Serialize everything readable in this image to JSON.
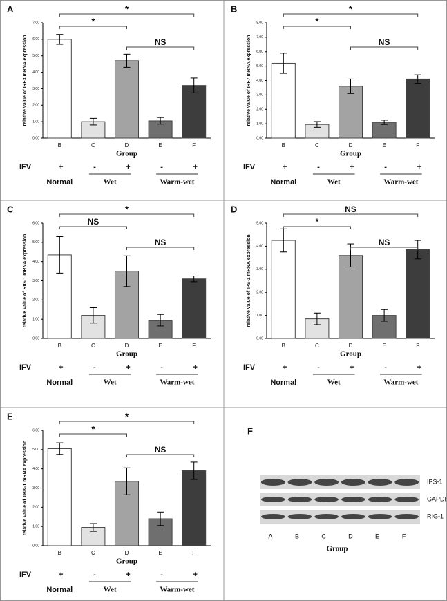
{
  "chart_data": [
    {
      "type": "bar",
      "panel": "A",
      "y_label": "relative value of IRF3 mRNA expression",
      "x_label": "Group",
      "categories": [
        "B",
        "C",
        "D",
        "E",
        "F"
      ],
      "values": [
        6.0,
        1.0,
        4.7,
        1.05,
        3.2
      ],
      "errors": [
        0.3,
        0.2,
        0.4,
        0.2,
        0.45
      ],
      "colors": [
        "#ffffff",
        "#e2e2e2",
        "#a3a3a3",
        "#6f6f6f",
        "#3d3d3d"
      ],
      "ylim": [
        0,
        7
      ],
      "yticks": [
        {
          "value": 0,
          "label": "0.00"
        },
        {
          "value": 1,
          "label": "1.00"
        },
        {
          "value": 2,
          "label": "2.00"
        },
        {
          "value": 3,
          "label": "3.00"
        },
        {
          "value": 4,
          "label": "4.00"
        },
        {
          "value": 5,
          "label": "5.00"
        },
        {
          "value": 6,
          "label": "6.00"
        },
        {
          "value": 7,
          "label": "7.00"
        }
      ],
      "comparisons": [
        {
          "label": "*",
          "span": [
            0,
            4
          ]
        },
        {
          "label": "*",
          "span": [
            0,
            2
          ]
        },
        {
          "label": "NS",
          "span": [
            2,
            4
          ]
        }
      ],
      "treatment": {
        "label": "IFV",
        "signs": [
          "+",
          "-",
          "+",
          "-",
          "+"
        ]
      },
      "groups": [
        {
          "name": "Normal",
          "span": [
            0,
            0
          ]
        },
        {
          "name": "Wet",
          "span": [
            1,
            2
          ]
        },
        {
          "name": "Warm-wet",
          "span": [
            3,
            4
          ]
        }
      ]
    },
    {
      "type": "bar",
      "panel": "B",
      "y_label": "relative value of IRF7 mRNA expression",
      "x_label": "Group",
      "categories": [
        "B",
        "C",
        "D",
        "E",
        "F"
      ],
      "values": [
        5.2,
        0.95,
        3.6,
        1.1,
        4.1
      ],
      "errors": [
        0.7,
        0.2,
        0.5,
        0.15,
        0.3
      ],
      "colors": [
        "#ffffff",
        "#e2e2e2",
        "#a3a3a3",
        "#6f6f6f",
        "#3d3d3d"
      ],
      "ylim": [
        0,
        8
      ],
      "yticks": [
        {
          "value": 0,
          "label": "0.00"
        },
        {
          "value": 1,
          "label": "1.00"
        },
        {
          "value": 2,
          "label": "2.00"
        },
        {
          "value": 3,
          "label": "3.00"
        },
        {
          "value": 4,
          "label": "4.00"
        },
        {
          "value": 5,
          "label": "5.00"
        },
        {
          "value": 6,
          "label": "6.00"
        },
        {
          "value": 7,
          "label": "7.00"
        },
        {
          "value": 8,
          "label": "8.00"
        }
      ],
      "comparisons": [
        {
          "label": "*",
          "span": [
            0,
            4
          ]
        },
        {
          "label": "*",
          "span": [
            0,
            2
          ]
        },
        {
          "label": "NS",
          "span": [
            2,
            4
          ]
        }
      ],
      "treatment": {
        "label": "IFV",
        "signs": [
          "+",
          "-",
          "+",
          "-",
          "+"
        ]
      },
      "groups": [
        {
          "name": "Normal",
          "span": [
            0,
            0
          ]
        },
        {
          "name": "Wet",
          "span": [
            1,
            2
          ]
        },
        {
          "name": "Warm-wet",
          "span": [
            3,
            4
          ]
        }
      ]
    },
    {
      "type": "bar",
      "panel": "C",
      "y_label": "relative value of RIG-1 mRNA expression",
      "x_label": "Group",
      "categories": [
        "B",
        "C",
        "D",
        "E",
        "F"
      ],
      "values": [
        4.35,
        1.2,
        3.5,
        0.95,
        3.1
      ],
      "errors": [
        0.95,
        0.4,
        0.8,
        0.3,
        0.15
      ],
      "colors": [
        "#ffffff",
        "#e2e2e2",
        "#a3a3a3",
        "#6f6f6f",
        "#3d3d3d"
      ],
      "ylim": [
        0,
        6
      ],
      "yticks": [
        {
          "value": 0,
          "label": "0.00"
        },
        {
          "value": 1,
          "label": "1.00"
        },
        {
          "value": 2,
          "label": "2.00"
        },
        {
          "value": 3,
          "label": "3.00"
        },
        {
          "value": 4,
          "label": "4.00"
        },
        {
          "value": 5,
          "label": "5.00"
        },
        {
          "value": 6,
          "label": "6.00"
        }
      ],
      "comparisons": [
        {
          "label": "*",
          "span": [
            0,
            4
          ]
        },
        {
          "label": "NS",
          "span": [
            0,
            2
          ]
        },
        {
          "label": "NS",
          "span": [
            2,
            4
          ]
        }
      ],
      "treatment": {
        "label": "IFV",
        "signs": [
          "+",
          "-",
          "+",
          "-",
          "+"
        ]
      },
      "groups": [
        {
          "name": "Normal",
          "span": [
            0,
            0
          ]
        },
        {
          "name": "Wet",
          "span": [
            1,
            2
          ]
        },
        {
          "name": "Warm-wet",
          "span": [
            3,
            4
          ]
        }
      ]
    },
    {
      "type": "bar",
      "panel": "D",
      "y_label": "relative value of IPS-1 mRNA expression",
      "x_label": "Group",
      "categories": [
        "B",
        "C",
        "D",
        "E",
        "F"
      ],
      "values": [
        4.25,
        0.85,
        3.6,
        1.0,
        3.85
      ],
      "errors": [
        0.5,
        0.25,
        0.5,
        0.25,
        0.4
      ],
      "colors": [
        "#ffffff",
        "#e2e2e2",
        "#a3a3a3",
        "#6f6f6f",
        "#3d3d3d"
      ],
      "ylim": [
        0,
        5
      ],
      "yticks": [
        {
          "value": 0,
          "label": "0.00"
        },
        {
          "value": 1,
          "label": "1.00"
        },
        {
          "value": 2,
          "label": "2.00"
        },
        {
          "value": 3,
          "label": "3.00"
        },
        {
          "value": 4,
          "label": "4.00"
        },
        {
          "value": 5,
          "label": "5.00"
        }
      ],
      "comparisons": [
        {
          "label": "NS",
          "span": [
            0,
            4
          ]
        },
        {
          "label": "*",
          "span": [
            0,
            2
          ]
        },
        {
          "label": "NS",
          "span": [
            2,
            4
          ]
        }
      ],
      "treatment": {
        "label": "IFV",
        "signs": [
          "+",
          "-",
          "+",
          "-",
          "+"
        ]
      },
      "groups": [
        {
          "name": "Normal",
          "span": [
            0,
            0
          ]
        },
        {
          "name": "Wet",
          "span": [
            1,
            2
          ]
        },
        {
          "name": "Warm-wet",
          "span": [
            3,
            4
          ]
        }
      ]
    },
    {
      "type": "bar",
      "panel": "E",
      "y_label": "relative value of TBK-1 mRNA expression",
      "x_label": "Group",
      "categories": [
        "B",
        "C",
        "D",
        "E",
        "F"
      ],
      "values": [
        5.05,
        0.95,
        3.35,
        1.4,
        3.9
      ],
      "errors": [
        0.3,
        0.2,
        0.7,
        0.35,
        0.45
      ],
      "colors": [
        "#ffffff",
        "#e2e2e2",
        "#a3a3a3",
        "#6f6f6f",
        "#3d3d3d"
      ],
      "ylim": [
        0,
        6
      ],
      "yticks": [
        {
          "value": 0,
          "label": "0.00"
        },
        {
          "value": 1,
          "label": "1.00"
        },
        {
          "value": 2,
          "label": "2.00"
        },
        {
          "value": 3,
          "label": "3.00"
        },
        {
          "value": 4,
          "label": "4.00"
        },
        {
          "value": 5,
          "label": "5.00"
        },
        {
          "value": 6,
          "label": "6.00"
        }
      ],
      "comparisons": [
        {
          "label": "*",
          "span": [
            0,
            4
          ]
        },
        {
          "label": "*",
          "span": [
            0,
            2
          ]
        },
        {
          "label": "NS",
          "span": [
            2,
            4
          ]
        }
      ],
      "treatment": {
        "label": "IFV",
        "signs": [
          "+",
          "-",
          "+",
          "-",
          "+"
        ]
      },
      "groups": [
        {
          "name": "Normal",
          "span": [
            0,
            0
          ]
        },
        {
          "name": "Wet",
          "span": [
            1,
            2
          ]
        },
        {
          "name": "Warm-wet",
          "span": [
            3,
            4
          ]
        }
      ]
    }
  ],
  "blot": {
    "panel": "F",
    "rows": [
      "IPS-1",
      "GAPDH",
      "RIG-1"
    ],
    "lanes": [
      "A",
      "B",
      "C",
      "D",
      "E",
      "F"
    ],
    "x_label": "Group"
  }
}
